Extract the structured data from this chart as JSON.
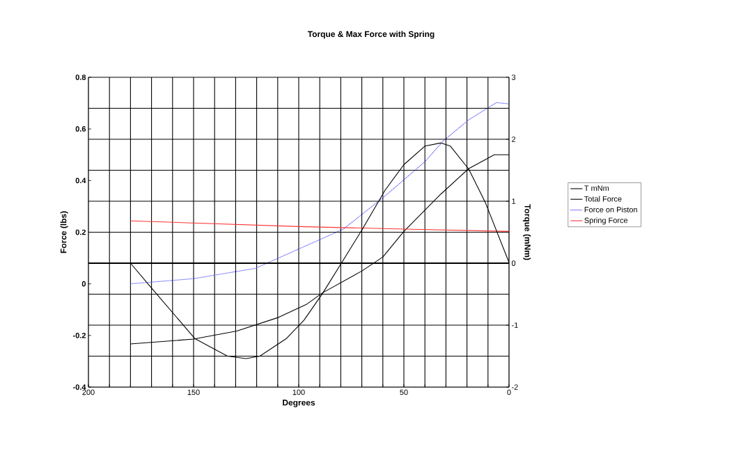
{
  "chart_data": {
    "type": "line",
    "title": "Torque & Max Force with Spring",
    "xlabel": "Degrees",
    "ylabel": "Force (lbs)",
    "y2label": "Torque (mNm)",
    "xlim": [
      200,
      0
    ],
    "xticks": [
      200,
      {
        "value": 190,
        "label": null
      },
      {
        "value": 180,
        "label": null
      },
      {
        "value": 170,
        "label": null
      },
      {
        "value": 160,
        "label": null
      },
      150,
      {
        "value": 140,
        "label": null
      },
      {
        "value": 130,
        "label": null
      },
      {
        "value": 120,
        "label": null
      },
      {
        "value": 110,
        "label": null
      },
      100,
      {
        "value": 90,
        "label": null
      },
      {
        "value": 80,
        "label": null
      },
      {
        "value": 70,
        "label": null
      },
      {
        "value": 60,
        "label": null
      },
      50,
      {
        "value": 40,
        "label": null
      },
      {
        "value": 30,
        "label": null
      },
      {
        "value": 20,
        "label": null
      },
      {
        "value": 10,
        "label": null
      },
      0
    ],
    "ylim": [
      -0.4,
      0.8
    ],
    "yticks": [
      -0.4,
      -0.2,
      0,
      0.2,
      0.4,
      0.6,
      0.8
    ],
    "y2lim": [
      -2,
      3
    ],
    "y2ticks": [
      -2,
      {
        "value": -1.5,
        "label": null
      },
      -1,
      {
        "value": -0.5,
        "label": null
      },
      0,
      {
        "value": 0.5,
        "label": null
      },
      1,
      {
        "value": 1.5,
        "label": null
      },
      2,
      {
        "value": 2.5,
        "label": null
      },
      3
    ],
    "grid": true,
    "legend": "right",
    "ref_lines": [
      {
        "axis": "y2",
        "value": 0,
        "color": "#000000"
      }
    ],
    "series": [
      {
        "name": "T mNm",
        "color": "#000000",
        "axis": "y2",
        "line_style": "solid",
        "x": [
          180,
          170.3,
          149.3,
          133.9,
          125,
          118.5,
          106,
          97.5,
          88.7,
          78.8,
          69.9,
          58.9,
          50,
          40,
          32.5,
          27.9,
          19.2,
          11.4,
          0
        ],
        "values": [
          0,
          -0.39,
          -1.22,
          -1.5,
          -1.54,
          -1.5,
          -1.22,
          -0.92,
          -0.49,
          0.05,
          0.54,
          1.18,
          1.59,
          1.89,
          1.94,
          1.89,
          1.52,
          0.99,
          0.01
        ]
      },
      {
        "name": "Total Force",
        "color": "#000000",
        "line_style": "solid",
        "x": [
          180,
          150,
          129.5,
          109.6,
          96.4,
          88.7,
          69.9,
          60,
          50,
          32.5,
          19.2,
          7,
          0
        ],
        "values": [
          -0.233,
          -0.214,
          -0.183,
          -0.13,
          -0.08,
          -0.035,
          0.05,
          0.104,
          0.203,
          0.347,
          0.446,
          0.5,
          0.5
        ]
      },
      {
        "name": "Force on Piston",
        "color": "#3333ff",
        "line_style": "dotted",
        "x": [
          180,
          150,
          120.6,
          99.7,
          78.8,
          60,
          40,
          31.2,
          19.2,
          6,
          0
        ],
        "values": [
          0.0,
          0.02,
          0.06,
          0.136,
          0.212,
          0.333,
          0.473,
          0.554,
          0.635,
          0.702,
          0.697
        ]
      },
      {
        "name": "Spring Force",
        "color": "#ff3333",
        "line_style": "solid",
        "x": [
          180,
          100,
          50,
          0
        ],
        "values": [
          0.244,
          0.222,
          0.212,
          0.203
        ]
      }
    ]
  }
}
